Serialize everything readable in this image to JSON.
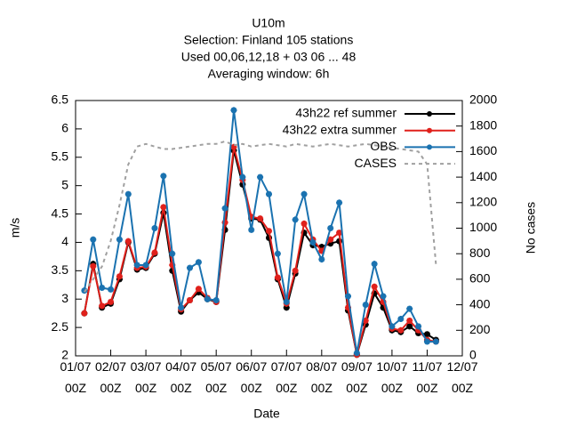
{
  "chart_data": {
    "type": "line",
    "title": [
      "U10m",
      "Selection: Finland     105 stations",
      "Used  00,06,12,18 + 03 06 ... 48",
      "Averaging window:  6h"
    ],
    "xlabel": "Date",
    "ylabel": "m/s",
    "y2label": "No cases",
    "xlim": [
      "01/07 00Z",
      "12/07 00Z"
    ],
    "xticks": [
      "01/07 00Z",
      "02/07 00Z",
      "03/07 00Z",
      "04/07 00Z",
      "05/07 00Z",
      "06/07 00Z",
      "07/07 00Z",
      "08/07 00Z",
      "09/07 00Z",
      "10/07 00Z",
      "11/07 00Z",
      "12/07 00Z"
    ],
    "ylim": [
      2,
      6.5
    ],
    "yticks": [
      2,
      2.5,
      3,
      3.5,
      4,
      4.5,
      5,
      5.5,
      6,
      6.5
    ],
    "y2lim": [
      0,
      2000
    ],
    "y2ticks": [
      0,
      200,
      400,
      600,
      800,
      1000,
      1200,
      1400,
      1600,
      1800,
      2000
    ],
    "legend": "upper right",
    "x": [
      "01/07 06Z",
      "01/07 12Z",
      "01/07 18Z",
      "02/07 00Z",
      "02/07 06Z",
      "02/07 12Z",
      "02/07 18Z",
      "03/07 00Z",
      "03/07 06Z",
      "03/07 12Z",
      "03/07 18Z",
      "04/07 00Z",
      "04/07 06Z",
      "04/07 12Z",
      "04/07 18Z",
      "05/07 00Z",
      "05/07 06Z",
      "05/07 12Z",
      "05/07 18Z",
      "06/07 00Z",
      "06/07 06Z",
      "06/07 12Z",
      "06/07 18Z",
      "07/07 00Z",
      "07/07 06Z",
      "07/07 12Z",
      "07/07 18Z",
      "08/07 00Z",
      "08/07 06Z",
      "08/07 12Z",
      "08/07 18Z",
      "09/07 00Z",
      "09/07 06Z",
      "09/07 12Z",
      "09/07 18Z",
      "10/07 00Z",
      "10/07 06Z",
      "10/07 12Z",
      "10/07 18Z",
      "11/07 00Z",
      "11/07 06Z"
    ],
    "series": [
      {
        "name": "43h22 ref summer",
        "color": "#000000",
        "marker": true,
        "values": [
          2.75,
          3.62,
          2.85,
          2.92,
          3.35,
          4.0,
          3.52,
          3.55,
          3.8,
          4.52,
          3.5,
          2.78,
          2.98,
          3.12,
          3.0,
          2.95,
          4.22,
          5.62,
          5.02,
          4.42,
          4.4,
          4.08,
          3.35,
          2.85,
          3.45,
          4.17,
          3.95,
          3.92,
          3.98,
          4.02,
          2.8,
          2.02,
          2.55,
          3.1,
          2.85,
          2.45,
          2.42,
          2.52,
          2.4,
          2.38,
          2.28
        ]
      },
      {
        "name": "43h22 extra summer",
        "color": "#e0201b",
        "marker": true,
        "values": [
          2.75,
          3.58,
          2.88,
          2.95,
          3.4,
          4.02,
          3.55,
          3.57,
          3.82,
          4.62,
          3.6,
          2.82,
          2.98,
          3.18,
          3.02,
          2.95,
          4.35,
          5.68,
          5.1,
          4.45,
          4.42,
          4.2,
          3.38,
          2.92,
          3.5,
          4.33,
          4.05,
          3.85,
          4.05,
          4.17,
          2.85,
          2.02,
          2.62,
          3.22,
          2.95,
          2.48,
          2.45,
          2.62,
          2.45,
          2.28,
          2.25
        ]
      },
      {
        "name": "OBS",
        "color": "#1a72b0",
        "marker": true,
        "values": [
          3.15,
          4.05,
          3.2,
          3.17,
          4.05,
          4.85,
          3.6,
          3.6,
          4.25,
          5.17,
          3.8,
          2.85,
          3.55,
          3.65,
          3.0,
          2.98,
          4.6,
          6.33,
          5.15,
          4.22,
          5.15,
          4.85,
          3.8,
          2.95,
          4.4,
          4.85,
          4.0,
          3.7,
          4.25,
          4.7,
          3.05,
          2.05,
          2.9,
          3.62,
          3.05,
          2.52,
          2.65,
          2.83,
          2.52,
          2.25,
          2.25
        ]
      },
      {
        "name": "CASES",
        "color": "#a0a0a0",
        "axis": "y2",
        "dashed": true,
        "values": [
          500,
          600,
          700,
          900,
          1180,
          1500,
          1640,
          1660,
          1640,
          1620,
          1620,
          1630,
          1640,
          1650,
          1660,
          1660,
          1680,
          1650,
          1660,
          1640,
          1650,
          1660,
          1650,
          1640,
          1660,
          1650,
          1640,
          1650,
          1660,
          1650,
          1640,
          1650,
          1660,
          1650,
          1640,
          1630,
          1620,
          1610,
          1600,
          1500,
          720
        ]
      }
    ]
  }
}
